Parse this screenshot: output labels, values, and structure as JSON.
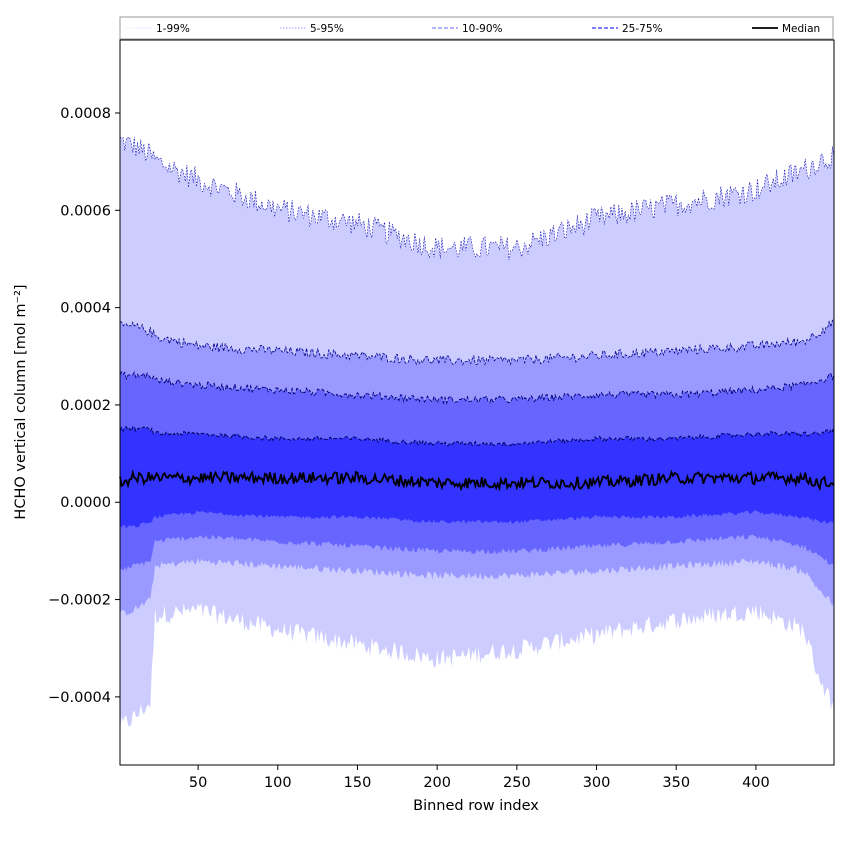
{
  "chart_data": {
    "type": "area",
    "xlabel": "Binned row index",
    "ylabel": "HCHO vertical column [mol m⁻²]",
    "xlim": [
      1,
      449
    ],
    "ylim": [
      -0.00054,
      0.00095
    ],
    "x_ticks": [
      50,
      100,
      150,
      200,
      250,
      300,
      350,
      400
    ],
    "x_tick_labels": [
      "50",
      "100",
      "150",
      "200",
      "250",
      "300",
      "350",
      "400"
    ],
    "y_ticks": [
      -0.0004,
      -0.0002,
      0.0,
      0.0002,
      0.0004,
      0.0006,
      0.0008
    ],
    "y_tick_labels": [
      "−0.0004",
      "−0.0002",
      "0.0000",
      "0.0002",
      "0.0004",
      "0.0006",
      "0.0008"
    ],
    "legend": {
      "placement": "top (above plot)",
      "entries": [
        {
          "label": "1-99%",
          "style": "dotted",
          "color": "#d0d0ff"
        },
        {
          "label": "5-95%",
          "style": "dotted",
          "color": "#8080ff"
        },
        {
          "label": "10-90%",
          "style": "dashed",
          "color": "#6a6aff"
        },
        {
          "label": "25-75%",
          "style": "dashed",
          "color": "#3030ff"
        },
        {
          "label": "Median",
          "style": "solid",
          "color": "#000000"
        }
      ]
    },
    "x_control": [
      1,
      10,
      20,
      23,
      50,
      100,
      150,
      200,
      250,
      300,
      350,
      400,
      430,
      440,
      449
    ],
    "series": [
      {
        "name": "1-99%",
        "fill": "#ccccff",
        "upper": [
          0.00074,
          0.00073,
          0.00071,
          0.0007,
          0.00066,
          0.0006,
          0.00057,
          0.00052,
          0.00052,
          0.00058,
          0.00061,
          0.00064,
          0.00068,
          0.0007,
          0.00071
        ],
        "lower": [
          -0.00046,
          -0.00044,
          -0.00041,
          -0.00023,
          -0.00022,
          -0.00026,
          -0.00029,
          -0.00032,
          -0.0003,
          -0.00027,
          -0.00024,
          -0.00022,
          -0.00026,
          -0.00036,
          -0.00042
        ]
      },
      {
        "name": "5-95%",
        "fill": "#9999ff",
        "upper": [
          0.00036,
          0.00036,
          0.00035,
          0.00034,
          0.00032,
          0.00031,
          0.0003,
          0.00029,
          0.00029,
          0.0003,
          0.00031,
          0.00032,
          0.00033,
          0.00035,
          0.00037
        ],
        "lower": [
          -0.00023,
          -0.00022,
          -0.0002,
          -0.00013,
          -0.00012,
          -0.00013,
          -0.00014,
          -0.00015,
          -0.00015,
          -0.00014,
          -0.00013,
          -0.00012,
          -0.00014,
          -0.00018,
          -0.00021
        ]
      },
      {
        "name": "10-90%",
        "fill": "#6666ff",
        "upper": [
          0.00026,
          0.00026,
          0.00026,
          0.00025,
          0.00024,
          0.00023,
          0.00022,
          0.00021,
          0.00021,
          0.00022,
          0.00022,
          0.00023,
          0.00024,
          0.00025,
          0.00026
        ],
        "lower": [
          -0.00014,
          -0.00013,
          -0.00012,
          -8e-05,
          -7e-05,
          -8e-05,
          -9e-05,
          -0.0001,
          -0.0001,
          -9e-05,
          -8e-05,
          -7e-05,
          -9e-05,
          -0.00011,
          -0.00013
        ]
      },
      {
        "name": "25-75%",
        "fill": "#3333ff",
        "upper": [
          0.00015,
          0.00015,
          0.00015,
          0.00014,
          0.00014,
          0.00013,
          0.00013,
          0.00012,
          0.00012,
          0.00013,
          0.00013,
          0.00014,
          0.00014,
          0.00014,
          0.00015
        ],
        "lower": [
          -5e-05,
          -5e-05,
          -4e-05,
          -3e-05,
          -2e-05,
          -3e-05,
          -3e-05,
          -4e-05,
          -4e-05,
          -3e-05,
          -3e-05,
          -2e-05,
          -3e-05,
          -4e-05,
          -4e-05
        ]
      },
      {
        "name": "Median",
        "color": "#000000",
        "values": [
          4e-05,
          5e-05,
          5e-05,
          5e-05,
          5e-05,
          5e-05,
          5e-05,
          4e-05,
          4e-05,
          4e-05,
          5e-05,
          5e-05,
          5e-05,
          4e-05,
          4e-05
        ]
      }
    ],
    "grid": false
  }
}
